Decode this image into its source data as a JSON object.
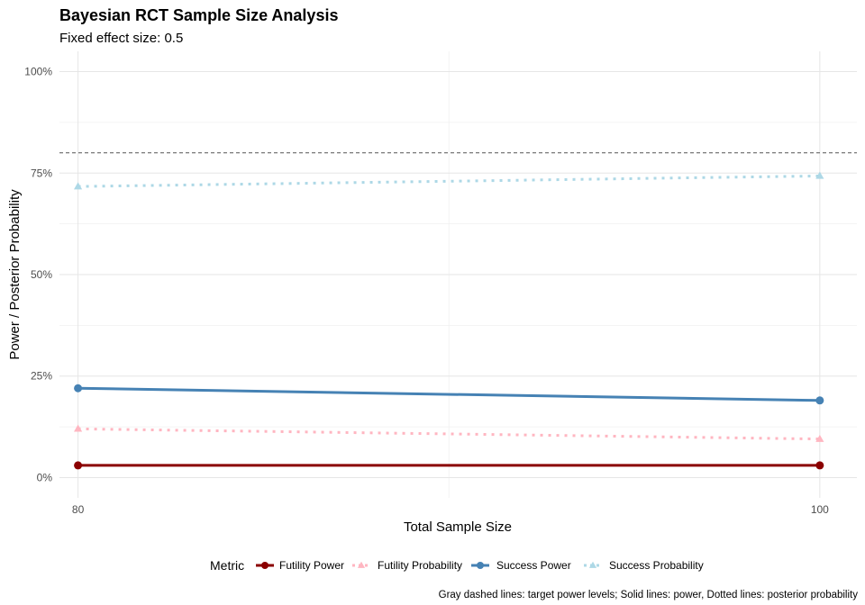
{
  "chart_data": {
    "type": "line",
    "title": "Bayesian RCT Sample Size Analysis",
    "subtitle": "Fixed effect size: 0.5",
    "xlabel": "Total Sample Size",
    "ylabel": "Power / Posterior Probability",
    "caption": "Gray dashed lines: target power levels; Solid lines: power, Dotted lines: posterior probability",
    "x": [
      80,
      100
    ],
    "x_ticks": [
      {
        "value": 80,
        "label": "80"
      },
      {
        "value": 100,
        "label": "100"
      }
    ],
    "xlim": [
      79.5,
      101
    ],
    "ylim": [
      -0.05,
      1.05
    ],
    "y_ticks": [
      {
        "value": 0,
        "label": "0%"
      },
      {
        "value": 0.25,
        "label": "25%"
      },
      {
        "value": 0.5,
        "label": "50%"
      },
      {
        "value": 0.75,
        "label": "75%"
      },
      {
        "value": 1,
        "label": "100%"
      }
    ],
    "reference_lines": [
      {
        "y": 0.8,
        "style": "dashed",
        "color": "#555555"
      }
    ],
    "grid": true,
    "legend": {
      "title": "Metric",
      "position": "bottom"
    },
    "series": [
      {
        "name": "Futility Power",
        "values": [
          0.03,
          0.03
        ],
        "color": "#8B0000",
        "line": "solid",
        "marker": "circle"
      },
      {
        "name": "Futility Probability",
        "values": [
          0.12,
          0.095
        ],
        "color": "#FFB6C1",
        "line": "dotted",
        "marker": "triangle"
      },
      {
        "name": "Success Power",
        "values": [
          0.22,
          0.19
        ],
        "color": "#4682B4",
        "line": "solid",
        "marker": "circle"
      },
      {
        "name": "Success Probability",
        "values": [
          0.717,
          0.743
        ],
        "color": "#ADD8E6",
        "line": "dotted",
        "marker": "triangle"
      }
    ]
  }
}
